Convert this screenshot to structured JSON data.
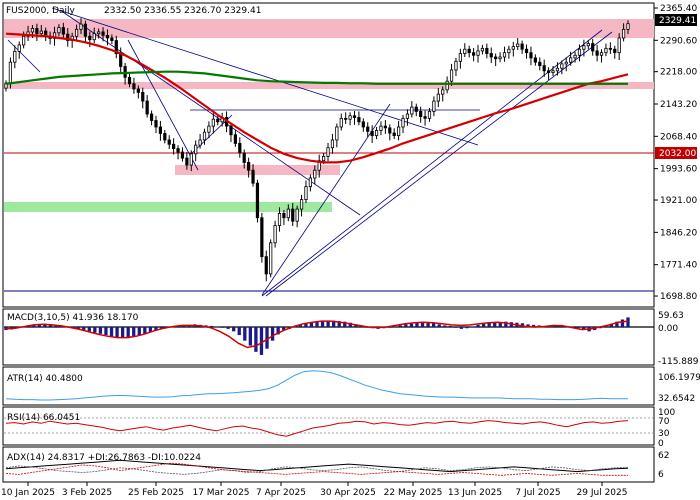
{
  "header": {
    "symbol_label": "FUS2000, Daily",
    "ohlc": "2332.50 2336.55 2326.70 2329.41"
  },
  "chart_data": [
    {
      "type": "candlestick",
      "panel": "price",
      "x_ticks": [
        "10 Jan 2025",
        "3 Feb 2025",
        "25 Feb 2025",
        "17 Mar 2025",
        "7 Apr 2025",
        "30 Apr 2025",
        "22 May 2025",
        "13 Jun 2025",
        "7 Jul 2025",
        "29 Jul 2025"
      ],
      "y_ticks": [
        2365.4,
        2290.6,
        2218.0,
        2143.2,
        2068.4,
        1993.6,
        1921.0,
        1846.2,
        1771.4,
        1698.8
      ],
      "ylim": [
        1685,
        2370
      ],
      "last_price": 2329.41,
      "last_price_label": "2329.41",
      "marked_level": 2032.0,
      "marked_level_label": "2032.00",
      "close_series_approx": [
        2190,
        2240,
        2265,
        2280,
        2300,
        2310,
        2318,
        2306,
        2312,
        2300,
        2295,
        2308,
        2320,
        2305,
        2290,
        2300,
        2316,
        2328,
        2300,
        2292,
        2306,
        2310,
        2302,
        2296,
        2290,
        2260,
        2230,
        2205,
        2190,
        2178,
        2170,
        2150,
        2120,
        2105,
        2090,
        2075,
        2060,
        2050,
        2040,
        2032,
        2018,
        2002,
        2028,
        2048,
        2060,
        2078,
        2092,
        2108,
        2102,
        2112,
        2092,
        2072,
        2052,
        2030,
        2008,
        1990,
        1960,
        1880,
        1790,
        1750,
        1822,
        1862,
        1890,
        1880,
        1900,
        1872,
        1900,
        1922,
        1952,
        1972,
        1990,
        2012,
        2022,
        2042,
        2060,
        2090,
        2110,
        2108,
        2116,
        2112,
        2102,
        2090,
        2080,
        2070,
        2082,
        2092,
        2088,
        2076,
        2070,
        2090,
        2110,
        2120,
        2136,
        2126,
        2114,
        2110,
        2126,
        2150,
        2166,
        2176,
        2196,
        2222,
        2242,
        2260,
        2270,
        2262,
        2256,
        2266,
        2272,
        2260,
        2252,
        2248,
        2252,
        2262,
        2270,
        2276,
        2282,
        2270,
        2262,
        2250,
        2240,
        2232,
        2220,
        2216,
        2220,
        2226,
        2236,
        2240,
        2250,
        2256,
        2270,
        2278,
        2283,
        2266,
        2256,
        2262,
        2272,
        2270,
        2262,
        2296,
        2316,
        2329
      ],
      "series": [
        {
          "name": "",
          "color": "#d40000",
          "values_approx": [
            2306,
            2304,
            2302,
            2300,
            2296,
            2292,
            2286,
            2278,
            2268,
            2256,
            2240,
            2222,
            2204,
            2184,
            2162,
            2140,
            2118,
            2098,
            2078,
            2060,
            2042,
            2028,
            2018,
            2012,
            2008,
            2008,
            2012,
            2020,
            2030,
            2040,
            2052,
            2062,
            2072,
            2082,
            2092,
            2102,
            2112,
            2122,
            2130,
            2140,
            2150,
            2160,
            2170,
            2180,
            2190,
            2196,
            2204,
            2212
          ]
        },
        {
          "name": "",
          "color": "#007a00",
          "values_approx": [
            2190,
            2194,
            2198,
            2202,
            2206,
            2208,
            2210,
            2212,
            2214,
            2215,
            2216,
            2217,
            2218,
            2218,
            2216,
            2214,
            2210,
            2206,
            2202,
            2198,
            2196,
            2195,
            2194,
            2193,
            2192,
            2192,
            2191,
            2191,
            2190,
            2190,
            2190,
            2190,
            2190,
            2190,
            2190,
            2190,
            2190,
            2190,
            2190,
            2190,
            2190,
            2190,
            2190,
            2190,
            2190,
            2190,
            2190,
            2190
          ]
        }
      ]
    },
    {
      "type": "bar+line",
      "panel": "MACD",
      "label": "MACD(3,10,5) 41.936 18.170",
      "y_ticks": [
        "59.63",
        "0.00",
        "-115.889"
      ],
      "histogram_approx": [
        -10,
        -8,
        -4,
        2,
        6,
        8,
        10,
        12,
        10,
        6,
        4,
        2,
        -2,
        -6,
        -10,
        -14,
        -18,
        -22,
        -26,
        -30,
        -34,
        -36,
        -36,
        -32,
        -28,
        -22,
        -16,
        -10,
        -6,
        -2,
        2,
        4,
        6,
        8,
        10,
        8,
        6,
        4,
        2,
        -2,
        -6,
        -14,
        -26,
        -44,
        -60,
        -80,
        -90,
        -70,
        -44,
        -24,
        -10,
        -6,
        2,
        8,
        14,
        18,
        20,
        22,
        24,
        24,
        22,
        20,
        16,
        10,
        4,
        0,
        -4,
        -6,
        -4,
        -2,
        2,
        6,
        10,
        14,
        18,
        20,
        18,
        14,
        10,
        6,
        4,
        -2,
        -6,
        -4,
        2,
        8,
        12,
        14,
        16,
        18,
        20,
        18,
        16,
        14,
        10,
        8,
        6,
        4,
        2,
        6,
        8,
        4,
        2,
        -4,
        -10,
        -14,
        -10,
        -4,
        4,
        12,
        20,
        28,
        36
      ],
      "signal_approx": [
        -6,
        -4,
        2,
        8,
        10,
        8,
        4,
        -2,
        -8,
        -16,
        -24,
        -30,
        -34,
        -34,
        -30,
        -22,
        -12,
        -4,
        2,
        6,
        6,
        4,
        -2,
        -14,
        -30,
        -52,
        -66,
        -60,
        -42,
        -24,
        -10,
        2,
        12,
        18,
        22,
        22,
        18,
        12,
        6,
        0,
        -2,
        0,
        6,
        12,
        16,
        18,
        16,
        12,
        8,
        6,
        8,
        12,
        16,
        18,
        14,
        8,
        2,
        0,
        2,
        6,
        4,
        -2,
        -8,
        -6,
        0,
        8,
        18,
        22
      ]
    },
    {
      "type": "line",
      "panel": "ATR",
      "label": "ATR(14) 40.4800",
      "y_ticks": [
        "106.1979",
        "32.6542"
      ],
      "values_approx": [
        40,
        39,
        38,
        38,
        37,
        37,
        38,
        39,
        40,
        42,
        44,
        46,
        47,
        48,
        47,
        46,
        45,
        44,
        44,
        45,
        47,
        48,
        50,
        52,
        52,
        53,
        54,
        56,
        58,
        60,
        64,
        72,
        84,
        96,
        104,
        106,
        105,
        102,
        96,
        88,
        80,
        72,
        66,
        60,
        56,
        52,
        50,
        48,
        46,
        45,
        44,
        44,
        43,
        42,
        42,
        42,
        42,
        41,
        40,
        40,
        40,
        39,
        39,
        38,
        38,
        38,
        39,
        40,
        41,
        40,
        40,
        40
      ]
    },
    {
      "type": "line",
      "panel": "RSI",
      "label": "RSI(14) 66.0451",
      "y_ticks": [
        "100",
        "70",
        "30",
        "0"
      ],
      "values_approx": [
        58,
        60,
        56,
        62,
        58,
        64,
        60,
        56,
        58,
        54,
        50,
        46,
        40,
        36,
        40,
        44,
        48,
        42,
        38,
        44,
        48,
        52,
        46,
        40,
        36,
        42,
        48,
        50,
        44,
        40,
        32,
        24,
        20,
        28,
        36,
        44,
        48,
        52,
        58,
        60,
        64,
        62,
        56,
        60,
        58,
        54,
        52,
        56,
        60,
        58,
        62,
        64,
        60,
        58,
        62,
        66,
        64,
        60,
        58,
        56,
        60,
        62,
        58,
        52,
        48,
        54,
        60,
        62,
        58,
        60,
        64,
        66
      ]
    },
    {
      "type": "line",
      "panel": "ADX",
      "label": "ADX(14) 24.8317 +DI:26.7863 -DI:10.0224",
      "y_ticks": [
        "62",
        "6"
      ],
      "adx_approx": [
        24,
        26,
        28,
        30,
        32,
        34,
        36,
        38,
        40,
        42,
        40,
        38,
        36,
        34,
        32,
        30,
        28,
        26,
        24,
        22,
        20,
        22,
        24,
        26,
        28,
        30,
        32,
        34,
        32,
        30,
        28,
        26,
        24,
        22,
        20,
        18,
        20,
        22,
        24,
        26,
        28,
        26,
        24,
        22,
        20,
        18,
        20,
        22,
        24,
        25
      ],
      "plus_di_approx": [
        26,
        30,
        28,
        24,
        20,
        18,
        16,
        18,
        22,
        26,
        24,
        20,
        16,
        14,
        12,
        14,
        18,
        22,
        20,
        16,
        18,
        24,
        28,
        26,
        22,
        20,
        22,
        26,
        28,
        24,
        20,
        18,
        22,
        26,
        24,
        20,
        22,
        26,
        28,
        26,
        22,
        20,
        24,
        28,
        26,
        22,
        20,
        24,
        26,
        27
      ],
      "minus_di_approx": [
        14,
        12,
        16,
        20,
        24,
        28,
        32,
        30,
        26,
        20,
        24,
        28,
        32,
        36,
        34,
        30,
        26,
        22,
        20,
        18,
        16,
        14,
        12,
        14,
        16,
        18,
        16,
        14,
        12,
        14,
        16,
        18,
        16,
        14,
        12,
        14,
        16,
        14,
        12,
        10,
        12,
        14,
        12,
        10,
        12,
        14,
        12,
        10,
        10,
        10
      ]
    }
  ]
}
